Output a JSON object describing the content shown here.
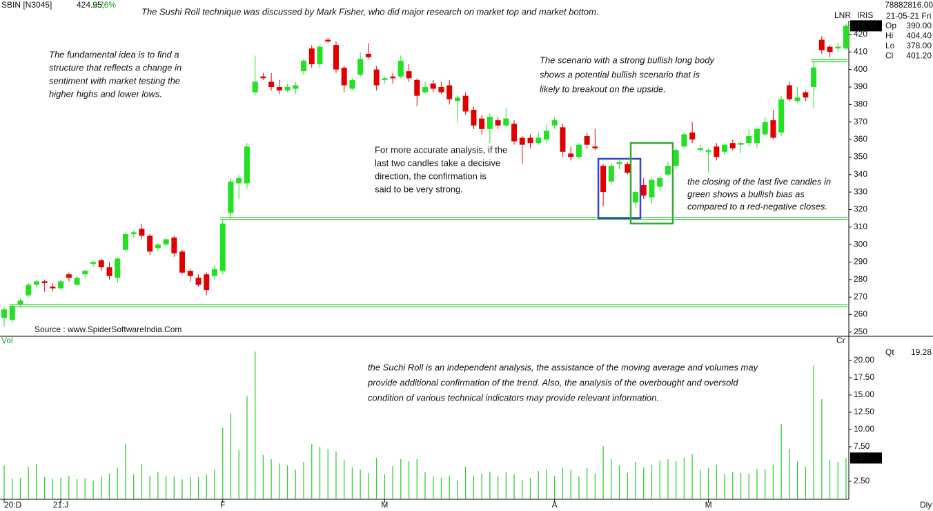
{
  "header": {
    "symbol": "SBIN [N3045]",
    "last": "424.95,",
    "change": "2.76%"
  },
  "info": {
    "volume_total": "78882816.00",
    "tags": [
      "LNR",
      "IRIS"
    ],
    "date": "21-05-21 Fri",
    "rows": [
      {
        "label": "Op",
        "value": "390.00"
      },
      {
        "label": "Hi",
        "value": "404.40"
      },
      {
        "label": "Lo",
        "value": "378.00"
      },
      {
        "label": "Cl",
        "value": "401.20"
      }
    ]
  },
  "panel_labels": {
    "volume": "Vol",
    "currency": "Cr",
    "interval": "Dly"
  },
  "annotations": [
    {
      "lines": [
        "The Sushi Roll  technique was discussed by Mark Fisher, who did major research on market top and market bottom."
      ],
      "color": "#8b1a1a"
    },
    {
      "lines": [
        "The fundamental idea is to find a",
        "structure that reflects a change in",
        "sentiment with market testing the",
        "higher highs and lower lows."
      ],
      "color": "#e8842a"
    },
    {
      "lines": [
        "The scenario with a strong bullish long body",
        "shows a potential bullish scenario that is",
        "likely to breakout on the upside."
      ],
      "color": "#2aa02a"
    },
    {
      "lines": [
        "For more accurate analysis, if the",
        "last two candles take a decisive",
        "direction, the confirmation is",
        "said to be very strong."
      ],
      "color": "#3333bb"
    },
    {
      "lines": [
        "the closing of the last five candles in",
        "green shows a bullish bias as",
        "compared to a red-negative closes."
      ],
      "color": "#2aa02a"
    },
    {
      "lines": [
        "Source : www.SpiderSoftwareIndia.Com"
      ],
      "color": "#111111"
    },
    {
      "lines": [
        "the Suchi Roll is an independent analysis, the assistance of the moving average and volumes may",
        "provide additional confirmation of the trend. Also, the analysis of the overbought and oversold",
        "condition of various technical indicators may provide relevant information."
      ],
      "color": "#8b1a1a"
    }
  ],
  "chart_data": [
    {
      "type": "candlestick",
      "up_color": "#22e022",
      "down_color": "#e00000",
      "ylim": [
        247.6,
        439.7
      ],
      "yticks": [
        250,
        260,
        270,
        280,
        290,
        300,
        310,
        320,
        330,
        340,
        350,
        360,
        370,
        380,
        390,
        400,
        410,
        420
      ],
      "x_labels": [
        {
          "index": 0,
          "label": "20:D"
        },
        {
          "index": 7,
          "label": "21:J"
        },
        {
          "index": 27,
          "label": "F"
        },
        {
          "index": 47,
          "label": "M"
        },
        {
          "index": 68,
          "label": "A"
        },
        {
          "index": 87,
          "label": "M"
        }
      ],
      "levels": [
        {
          "value": 265,
          "from": 1,
          "color": "#2ecc2e"
        },
        {
          "value": 315,
          "from": 27,
          "color": "#2ecc2e"
        },
        {
          "value": 405,
          "from": 100,
          "color": "#2ecc2e"
        }
      ],
      "boxes": [
        {
          "from": 74,
          "to": 78,
          "low": 315,
          "high": 349,
          "color": "#3344cc"
        },
        {
          "from": 78,
          "to": 82,
          "low": 312,
          "high": 358,
          "color": "#33aa33"
        }
      ],
      "ohlc": [
        [
          258,
          264,
          253,
          263
        ],
        [
          257,
          266,
          255,
          265
        ],
        [
          266,
          269,
          264,
          268
        ],
        [
          271,
          278,
          270,
          277
        ],
        [
          277,
          280,
          275,
          279
        ],
        [
          279,
          280,
          273,
          278
        ],
        [
          276,
          278,
          273,
          275
        ],
        [
          275,
          280,
          274,
          279
        ],
        [
          283,
          284,
          279,
          281
        ],
        [
          277,
          282,
          276,
          281
        ],
        [
          283,
          286,
          281,
          285
        ],
        [
          289,
          291,
          287,
          290
        ],
        [
          291,
          292,
          285,
          287
        ],
        [
          287,
          290,
          280,
          282
        ],
        [
          281,
          293,
          278,
          292
        ],
        [
          297,
          307,
          296,
          306
        ],
        [
          306,
          308,
          304,
          307
        ],
        [
          309,
          312,
          303,
          305
        ],
        [
          305,
          306,
          294,
          296
        ],
        [
          298,
          301,
          296,
          300
        ],
        [
          300,
          304,
          299,
          303
        ],
        [
          304,
          305,
          293,
          295
        ],
        [
          296,
          297,
          283,
          284
        ],
        [
          285,
          286,
          279,
          282
        ],
        [
          281,
          283,
          276,
          277
        ],
        [
          283,
          284,
          271,
          274
        ],
        [
          282,
          288,
          280,
          286
        ],
        [
          285,
          314,
          283,
          312
        ],
        [
          318,
          338,
          314,
          336
        ],
        [
          335,
          340,
          326,
          338
        ],
        [
          335,
          358,
          332,
          356
        ],
        [
          387,
          408,
          385,
          393
        ],
        [
          396,
          398,
          394,
          395
        ],
        [
          393,
          398,
          388,
          390
        ],
        [
          390,
          394,
          386,
          388
        ],
        [
          388,
          392,
          387,
          390
        ],
        [
          389,
          393,
          386,
          391
        ],
        [
          399,
          406,
          397,
          405
        ],
        [
          412,
          414,
          401,
          403
        ],
        [
          403,
          414,
          401,
          413
        ],
        [
          417,
          418,
          415,
          416
        ],
        [
          414,
          416,
          398,
          400
        ],
        [
          401,
          402,
          387,
          391
        ],
        [
          389,
          395,
          388,
          394
        ],
        [
          397,
          410,
          396,
          406
        ],
        [
          409,
          415,
          406,
          407
        ],
        [
          400,
          402,
          388,
          391
        ],
        [
          394,
          396,
          392,
          395
        ],
        [
          396,
          398,
          392,
          395
        ],
        [
          396,
          408,
          395,
          405
        ],
        [
          399,
          403,
          393,
          395
        ],
        [
          394,
          395,
          379,
          385
        ],
        [
          387,
          393,
          386,
          390
        ],
        [
          392,
          394,
          387,
          389
        ],
        [
          390,
          393,
          386,
          387
        ],
        [
          391,
          394,
          380,
          383
        ],
        [
          382,
          385,
          370,
          384
        ],
        [
          385,
          387,
          374,
          376
        ],
        [
          377,
          379,
          366,
          368
        ],
        [
          372,
          374,
          363,
          366
        ],
        [
          366,
          375,
          358,
          373
        ],
        [
          371,
          373,
          366,
          368
        ],
        [
          368,
          378,
          367,
          372
        ],
        [
          369,
          371,
          357,
          359
        ],
        [
          361,
          362,
          346,
          357
        ],
        [
          361,
          363,
          355,
          358
        ],
        [
          358,
          364,
          357,
          361
        ],
        [
          360,
          369,
          358,
          365
        ],
        [
          368,
          373,
          366,
          371
        ],
        [
          367,
          369,
          350,
          353
        ],
        [
          352,
          356,
          348,
          350
        ],
        [
          350,
          358,
          349,
          357
        ],
        [
          362,
          364,
          355,
          357
        ],
        [
          356,
          366,
          354,
          355
        ],
        [
          345,
          346,
          322,
          330
        ],
        [
          336,
          346,
          334,
          345
        ],
        [
          346,
          348,
          343,
          347
        ],
        [
          346,
          347,
          340,
          341
        ],
        [
          324,
          331,
          321,
          330
        ],
        [
          334,
          338,
          326,
          328
        ],
        [
          327,
          338,
          323,
          337
        ],
        [
          333,
          339,
          331,
          338
        ],
        [
          340,
          347,
          339,
          345
        ],
        [
          345,
          355,
          343,
          354
        ],
        [
          356,
          364,
          355,
          363
        ],
        [
          364,
          370,
          358,
          360
        ],
        [
          354,
          357,
          353,
          355
        ],
        [
          353,
          355,
          341,
          354
        ],
        [
          356,
          358,
          348,
          350
        ],
        [
          353,
          358,
          351,
          357
        ],
        [
          358,
          360,
          354,
          355
        ],
        [
          357,
          359,
          352,
          358
        ],
        [
          358,
          366,
          356,
          362
        ],
        [
          358,
          367,
          355,
          366
        ],
        [
          363,
          373,
          362,
          370
        ],
        [
          371,
          377,
          360,
          361
        ],
        [
          364,
          385,
          362,
          383
        ],
        [
          391,
          393,
          382,
          383
        ],
        [
          382,
          390,
          381,
          384
        ],
        [
          387,
          388,
          382,
          384
        ],
        [
          390,
          404.4,
          378,
          401.2
        ],
        [
          417,
          419,
          409,
          411
        ],
        [
          413,
          414,
          407,
          410
        ],
        [
          412,
          415,
          410,
          413
        ],
        [
          412,
          426,
          411,
          424.95
        ]
      ]
    },
    {
      "type": "bar",
      "name": "Qt",
      "color": "#33cc33",
      "ylim": [
        0,
        23.5
      ],
      "yticks": [
        {
          "value": 2.5,
          "label": "2.50"
        },
        {
          "value": 7.5,
          "label": "7.50"
        },
        {
          "value": 10,
          "label": "10.00"
        },
        {
          "value": 12.5,
          "label": "12.50"
        },
        {
          "value": 15,
          "label": "15.00"
        },
        {
          "value": 17.5,
          "label": "17.50"
        },
        {
          "value": 20,
          "label": "20.00"
        }
      ],
      "values": [
        4.8,
        2.9,
        3.0,
        4.6,
        5.0,
        3.1,
        2.9,
        3.0,
        3.3,
        2.8,
        3.0,
        2.6,
        3.2,
        3.6,
        4.4,
        7.9,
        3.5,
        5.0,
        3.3,
        3.8,
        3.3,
        3.2,
        2.8,
        3.1,
        3.1,
        3.5,
        4.2,
        10.2,
        12.3,
        7.0,
        14.8,
        21.3,
        6.3,
        5.7,
        5.1,
        4.8,
        4.2,
        5.3,
        7.9,
        7.5,
        7.2,
        6.8,
        5.6,
        4.5,
        4.2,
        3.7,
        5.9,
        3.5,
        4.7,
        5.7,
        5.4,
        5.7,
        3.8,
        3.2,
        3.0,
        3.3,
        2.6,
        4.6,
        3.3,
        3.6,
        3.9,
        3.3,
        3.8,
        3.5,
        2.7,
        3.0,
        4.0,
        4.2,
        3.3,
        4.5,
        4.2,
        3.2,
        4.4,
        3.6,
        7.6,
        5.7,
        4.8,
        3.7,
        5.3,
        4.5,
        4.9,
        5.5,
        5.7,
        5.4,
        5.9,
        6.4,
        4.2,
        4.4,
        4.9,
        3.6,
        3.8,
        3.7,
        3.6,
        4.3,
        4.3,
        4.9,
        10.8,
        7.2,
        5.4,
        4.6,
        19.28,
        14.4,
        5.6,
        5.3,
        5.87
      ]
    }
  ]
}
